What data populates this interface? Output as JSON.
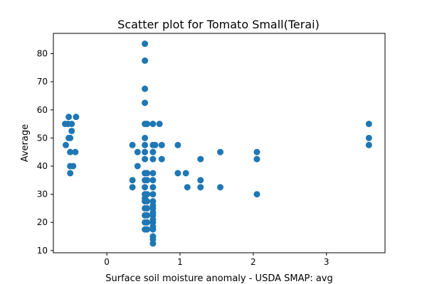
{
  "chart_data": {
    "type": "scatter",
    "title": "Scatter plot for Tomato Small(Terai)",
    "xlabel": "Surface soil moisture anomaly  - USDA SMAP: avg",
    "ylabel": "Average",
    "xlim": [
      -0.73,
      3.8
    ],
    "ylim": [
      9.2,
      87.2
    ],
    "xticks": [
      0,
      1,
      2,
      3
    ],
    "yticks": [
      10,
      20,
      30,
      40,
      50,
      60,
      70,
      80
    ],
    "grid": false,
    "marker_color": "#1f77b4",
    "points": [
      [
        -0.57,
        55
      ],
      [
        -0.53,
        55
      ],
      [
        -0.52,
        57.5
      ],
      [
        -0.48,
        55
      ],
      [
        -0.42,
        57.5
      ],
      [
        -0.56,
        47.5
      ],
      [
        -0.52,
        50
      ],
      [
        -0.5,
        50
      ],
      [
        -0.48,
        52.5
      ],
      [
        -0.5,
        45
      ],
      [
        -0.43,
        45
      ],
      [
        -0.5,
        40
      ],
      [
        -0.46,
        40
      ],
      [
        -0.5,
        37.5
      ],
      [
        0.35,
        47.5
      ],
      [
        0.42,
        45
      ],
      [
        0.35,
        35
      ],
      [
        0.35,
        32.5
      ],
      [
        0.42,
        40
      ],
      [
        0.52,
        83.5
      ],
      [
        0.52,
        77.5
      ],
      [
        0.52,
        67.5
      ],
      [
        0.52,
        62.5
      ],
      [
        0.52,
        55
      ],
      [
        0.52,
        50
      ],
      [
        0.52,
        47.5
      ],
      [
        0.52,
        45
      ],
      [
        0.52,
        42.5
      ],
      [
        0.52,
        37.5
      ],
      [
        0.52,
        35
      ],
      [
        0.52,
        32.5
      ],
      [
        0.52,
        30
      ],
      [
        0.52,
        28.5
      ],
      [
        0.52,
        27.5
      ],
      [
        0.52,
        25
      ],
      [
        0.52,
        22.5
      ],
      [
        0.52,
        20
      ],
      [
        0.52,
        17.5
      ],
      [
        0.55,
        55
      ],
      [
        0.55,
        37.5
      ],
      [
        0.55,
        35
      ],
      [
        0.55,
        30
      ],
      [
        0.55,
        27.5
      ],
      [
        0.55,
        25
      ],
      [
        0.55,
        22.5
      ],
      [
        0.55,
        20
      ],
      [
        0.55,
        17.5
      ],
      [
        0.63,
        55
      ],
      [
        0.63,
        47.5
      ],
      [
        0.63,
        45
      ],
      [
        0.63,
        42.5
      ],
      [
        0.63,
        37.5
      ],
      [
        0.63,
        35
      ],
      [
        0.63,
        32.5
      ],
      [
        0.63,
        30
      ],
      [
        0.63,
        27.5
      ],
      [
        0.63,
        26
      ],
      [
        0.63,
        25
      ],
      [
        0.63,
        23.5
      ],
      [
        0.63,
        22.5
      ],
      [
        0.63,
        21
      ],
      [
        0.63,
        20
      ],
      [
        0.63,
        18.5
      ],
      [
        0.63,
        17.5
      ],
      [
        0.63,
        15
      ],
      [
        0.63,
        14
      ],
      [
        0.63,
        12.5
      ],
      [
        0.66,
        47.5
      ],
      [
        0.72,
        55
      ],
      [
        0.75,
        47.5
      ],
      [
        0.75,
        42.5
      ],
      [
        0.97,
        47.5
      ],
      [
        0.97,
        37.5
      ],
      [
        1.08,
        37.5
      ],
      [
        1.1,
        32.5
      ],
      [
        1.28,
        42.5
      ],
      [
        1.28,
        35
      ],
      [
        1.28,
        32.5
      ],
      [
        1.55,
        45
      ],
      [
        1.55,
        32.5
      ],
      [
        2.05,
        45
      ],
      [
        2.05,
        42.5
      ],
      [
        2.05,
        30
      ],
      [
        3.58,
        55
      ],
      [
        3.58,
        50
      ],
      [
        3.58,
        47.5
      ]
    ]
  }
}
